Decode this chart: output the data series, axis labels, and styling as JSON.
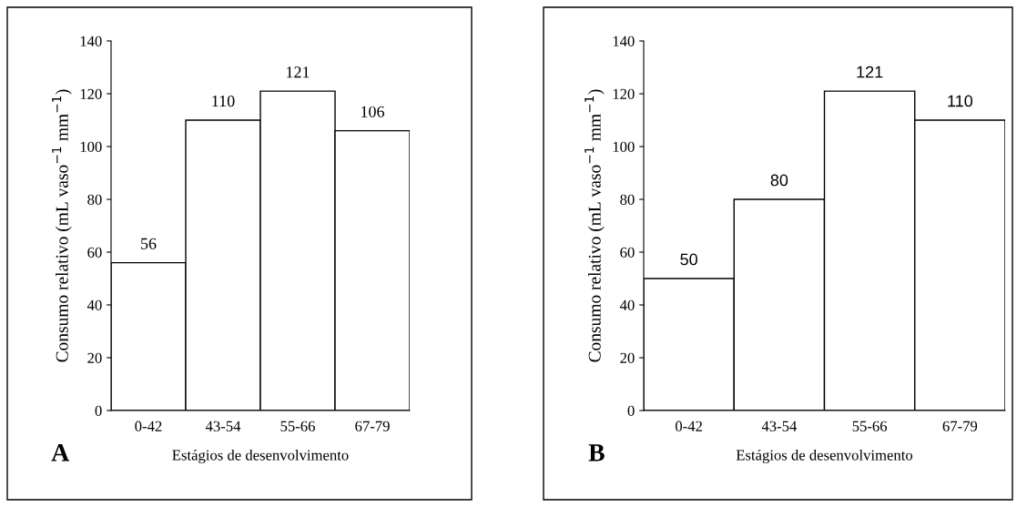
{
  "chart_data": [
    {
      "type": "bar",
      "categories": [
        "0-42",
        "43-54",
        "55-66",
        "67-79"
      ],
      "values": [
        56,
        110,
        121,
        106
      ],
      "color": "#ffffff",
      "data_labels": true,
      "ylim": [
        0,
        140
      ],
      "yticks": [
        0,
        20,
        40,
        60,
        80,
        100,
        120,
        140
      ],
      "ylabel": "Consumo relativo (mL vaso$^{−1}$ mm$^{−1}$)",
      "xlabel": "Estágios de desenvolvimento",
      "annotations": [
        "A"
      ],
      "grid": false,
      "legend": false
    },
    {
      "type": "bar",
      "categories": [
        "0-42",
        "43-54",
        "55-66",
        "67-79"
      ],
      "values": [
        50,
        80,
        121,
        110
      ],
      "color": "#ffffff",
      "data_labels": true,
      "ylim": [
        0,
        140
      ],
      "yticks": [
        0,
        20,
        40,
        60,
        80,
        100,
        120,
        140
      ],
      "ylabel": "Consumo relativo (mL vaso$^{−1}$ mm$^{−1}$)",
      "xlabel": "Estágios de desenvolvimento",
      "annotations": [
        "B"
      ],
      "grid": false,
      "legend": false
    }
  ]
}
